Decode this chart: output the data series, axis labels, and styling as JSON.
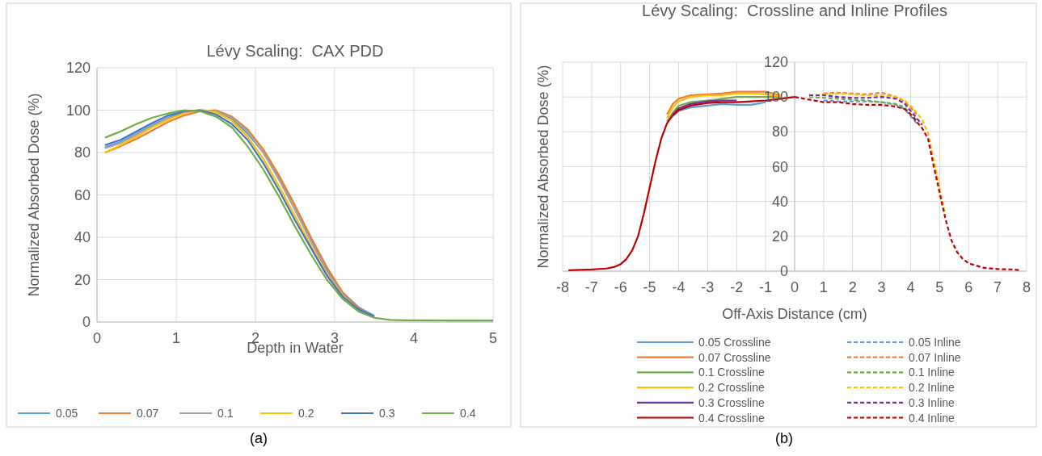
{
  "chart_data": [
    {
      "type": "line",
      "title": "Lévy Scaling:  CAX PDD",
      "xlabel": "Depth in Water",
      "ylabel": "Normalized Absorbed Dose (%)",
      "xlim": [
        0,
        5
      ],
      "xticks": [
        0,
        1,
        2,
        3,
        4,
        5
      ],
      "ylim": [
        0,
        120
      ],
      "yticks": [
        0,
        20,
        40,
        60,
        80,
        100,
        120
      ],
      "grid": true,
      "legend": "bottom",
      "line_style": "solid",
      "annotations": [
        "(a)"
      ],
      "x": [
        0.1,
        0.3,
        0.5,
        0.7,
        0.9,
        1.1,
        1.3,
        1.5,
        1.7,
        1.9,
        2.1,
        2.3,
        2.5,
        2.7,
        2.9,
        3.1,
        3.3,
        3.5,
        3.7,
        3.9,
        4.5,
        5.0
      ],
      "series": [
        {
          "name": "0.05",
          "color": "#5b9bd5",
          "values": [
            82.5,
            85,
            89,
            93,
            96.5,
            99,
            100,
            99.5,
            96,
            89,
            80,
            68,
            53,
            39,
            25,
            14,
            7,
            3,
            null,
            null,
            null,
            null
          ]
        },
        {
          "name": "0.07",
          "color": "#ed7d31",
          "values": [
            80,
            83,
            86.5,
            90.5,
            94.5,
            97.5,
            99.5,
            100,
            97,
            91,
            81.5,
            69,
            55,
            40,
            26,
            14,
            6.5,
            2.5,
            null,
            null,
            null,
            null
          ]
        },
        {
          "name": "0.1",
          "color": "#a5a5a5",
          "values": [
            82,
            84.5,
            88.5,
            92.5,
            96,
            98.5,
            100,
            99.5,
            96.5,
            90,
            80,
            67,
            53,
            38,
            24,
            13,
            6,
            2.5,
            null,
            null,
            null,
            null
          ]
        },
        {
          "name": "0.2",
          "color": "#ffc000",
          "values": [
            80,
            83.5,
            87.5,
            92,
            95.5,
            98.5,
            100,
            99,
            95,
            87.5,
            77,
            64,
            50,
            36,
            22.5,
            12.5,
            5.5,
            null,
            null,
            null,
            null,
            null
          ]
        },
        {
          "name": "0.3",
          "color": "#4472c4",
          "values": [
            83.5,
            86,
            90,
            94,
            97.5,
            99.5,
            100,
            98,
            93.5,
            86,
            75,
            62,
            48,
            35,
            22,
            12,
            6,
            2.5,
            null,
            null,
            null,
            null
          ]
        },
        {
          "name": "0.4",
          "color": "#70ad47",
          "values": [
            87,
            90,
            93.5,
            96.5,
            98.5,
            100,
            99.5,
            97,
            92,
            83,
            72,
            59,
            45,
            32,
            20,
            11,
            5,
            2,
            1,
            0.8,
            0.7,
            0.7
          ]
        }
      ]
    },
    {
      "type": "line",
      "title": "Lévy Scaling:  Crossline and Inline Profiles",
      "xlabel": "Off-Axis Distance (cm)",
      "ylabel": "Normalized Absorbed Dose (%)",
      "xlim": [
        -8,
        8
      ],
      "xticks": [
        -8,
        -7,
        -6,
        -5,
        -4,
        -3,
        -2,
        -1,
        0,
        1,
        2,
        3,
        4,
        5,
        6,
        7,
        8
      ],
      "ylim": [
        0,
        120
      ],
      "yticks": [
        0,
        20,
        40,
        60,
        80,
        100,
        120
      ],
      "grid": true,
      "legend": "bottom",
      "annotations": [
        "(b)"
      ],
      "series": [
        {
          "name": "0.05 Crossline",
          "color": "#5b9bd5",
          "line_style": "solid",
          "x": [
            -4.2,
            -4,
            -3.6,
            -3,
            -2.5,
            -2,
            -1.5,
            -1
          ],
          "values": [
            89,
            92,
            94,
            95,
            96,
            95.5,
            95.5,
            97
          ]
        },
        {
          "name": "0.07 Crossline",
          "color": "#ed7d31",
          "line_style": "solid",
          "x": [
            -4.4,
            -4.2,
            -4,
            -3.6,
            -3,
            -2.5,
            -2,
            -1.5,
            -1,
            -0.5
          ],
          "values": [
            90,
            96,
            99,
            101,
            101.5,
            102,
            103,
            103,
            103,
            101
          ]
        },
        {
          "name": "0.1 Crossline",
          "color": "#70ad47",
          "line_style": "solid",
          "x": [
            -4.4,
            -4.2,
            -4,
            -3.6,
            -3,
            -2.5,
            -2,
            -1.5,
            -1,
            -0.5
          ],
          "values": [
            86,
            91,
            95,
            97,
            98,
            99,
            100,
            100,
            100,
            100
          ]
        },
        {
          "name": "0.2 Crossline",
          "color": "#ffc000",
          "line_style": "solid",
          "x": [
            -4.4,
            -4.2,
            -4,
            -3.6,
            -3,
            -2.5,
            -2,
            -1.5,
            -1,
            -0.5
          ],
          "values": [
            88,
            94,
            97.5,
            100,
            101,
            101,
            102,
            102,
            101.5,
            100.5
          ]
        },
        {
          "name": "0.3 Crossline",
          "color": "#7030a0",
          "line_style": "solid",
          "x": [
            -4.2,
            -4,
            -3.6,
            -3,
            -2.5,
            -2
          ],
          "values": [
            90,
            93.5,
            96,
            97.5,
            98,
            98
          ]
        },
        {
          "name": "0.4 Crossline",
          "color": "#c00000",
          "line_style": "solid",
          "x": [
            -7.8,
            -7,
            -6.5,
            -6.2,
            -6,
            -5.8,
            -5.6,
            -5.4,
            -5.2,
            -5,
            -4.8,
            -4.6,
            -4.4,
            -4.2,
            -4,
            -3.6,
            -3,
            -2.5,
            -2,
            -1.5,
            -1,
            -0.5,
            0
          ],
          "values": [
            0.5,
            1,
            1.5,
            2.5,
            4,
            7,
            12,
            20,
            33,
            48,
            63,
            76,
            85,
            89.5,
            92.5,
            95,
            96.5,
            97,
            97,
            97.5,
            98,
            99,
            100
          ]
        },
        {
          "name": "0.05 Inline",
          "color": "#5b9bd5",
          "line_style": "dashed",
          "x": [
            1,
            1.5,
            2,
            2.5,
            3,
            3.5,
            3.8,
            4,
            4.2
          ],
          "values": [
            98,
            97.5,
            97.5,
            97.5,
            97,
            95.5,
            93,
            89,
            85
          ]
        },
        {
          "name": "0.07 Inline",
          "color": "#ed7d31",
          "line_style": "dashed",
          "x": [
            1,
            1.5,
            2,
            2.5,
            3,
            3.5,
            3.8,
            4,
            4.2
          ],
          "values": [
            102,
            102.5,
            102,
            101.5,
            102.5,
            100,
            97,
            94,
            90
          ]
        },
        {
          "name": "0.1 Inline",
          "color": "#70ad47",
          "line_style": "dashed",
          "x": [
            0.5,
            1,
            1.5,
            2,
            2.5,
            3,
            3.5,
            3.8,
            4,
            4.2
          ],
          "values": [
            100,
            99.5,
            99,
            98.5,
            98,
            97,
            96,
            94,
            90,
            87
          ]
        },
        {
          "name": "0.2 Inline",
          "color": "#ffc000",
          "line_style": "dashed",
          "x": [
            0.5,
            1,
            1.5,
            2,
            2.5,
            3,
            3.5,
            3.8,
            4,
            4.2,
            4.4,
            4.6,
            4.8,
            5,
            5.2
          ],
          "values": [
            100.5,
            101.5,
            102,
            101.5,
            101,
            101,
            100,
            98,
            95,
            91,
            87,
            79,
            64,
            48,
            32
          ]
        },
        {
          "name": "0.3 Inline",
          "color": "#7030a0",
          "line_style": "dashed",
          "x": [
            0.5,
            1,
            1.5,
            2,
            2.5,
            3,
            3.5,
            3.8,
            4,
            4.2,
            4.4
          ],
          "values": [
            101,
            101,
            100,
            99.5,
            99.5,
            100,
            99,
            96,
            92,
            88,
            84
          ]
        },
        {
          "name": "0.4 Inline",
          "color": "#c00000",
          "line_style": "dashed",
          "x": [
            0,
            0.5,
            1,
            1.5,
            2,
            2.5,
            3,
            3.5,
            3.8,
            4,
            4.2,
            4.4,
            4.6,
            4.8,
            5,
            5.2,
            5.4,
            5.6,
            5.8,
            6,
            6.5,
            7,
            7.5,
            7.8
          ],
          "values": [
            100,
            98.5,
            97,
            97,
            96,
            95.5,
            95.5,
            94.5,
            93,
            90,
            86,
            82,
            76,
            60,
            45,
            30,
            18,
            11,
            7,
            4.5,
            2,
            1.2,
            1,
            0.5
          ]
        }
      ]
    }
  ]
}
